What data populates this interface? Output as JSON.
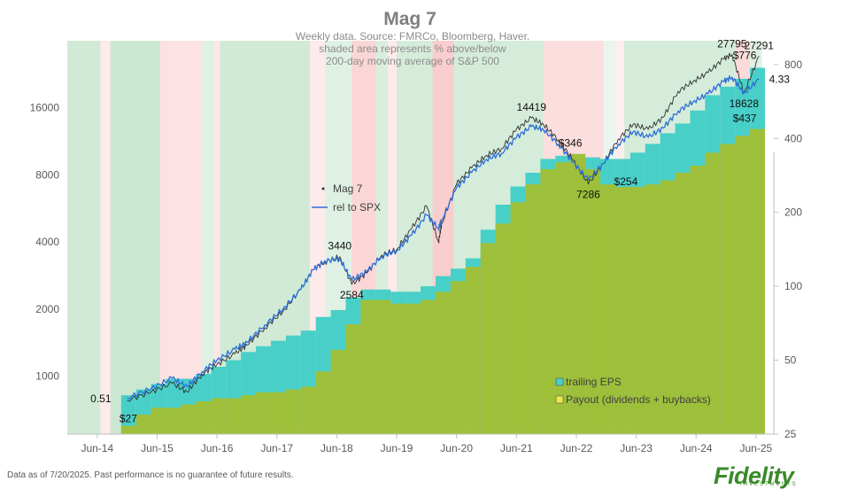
{
  "chart_data": {
    "type": "line",
    "title": "Mag 7",
    "subtitle": [
      "Weekly data.  Source: FMRCo, Bloomberg, Haver.",
      "shaded area represents % above/below",
      "200-day moving average of S&P 500"
    ],
    "x_ticks": [
      "Jun-14",
      "Jun-15",
      "Jun-16",
      "Jun-17",
      "Jun-18",
      "Jun-19",
      "Jun-20",
      "Jun-21",
      "Jun-22",
      "Jun-23",
      "Jun-24",
      "Jun-25"
    ],
    "left_axis": {
      "scale": "log",
      "ticks": [
        1000,
        2000,
        4000,
        8000,
        16000
      ],
      "ylim": [
        550,
        32000
      ]
    },
    "right_axis": {
      "scale": "log",
      "ticks": [
        25,
        50,
        100,
        200,
        400,
        800
      ],
      "ylim": [
        25,
        1000
      ]
    },
    "series": [
      {
        "name": "Mag 7",
        "axis": "left",
        "color": "#303030",
        "x": [
          2015.0,
          2015.4,
          2015.75,
          2016.0,
          2016.25,
          2016.5,
          2016.8,
          2017.0,
          2017.3,
          2017.6,
          2017.9,
          2018.1,
          2018.3,
          2018.55,
          2018.75,
          2019.0,
          2019.25,
          2019.5,
          2019.75,
          2020.0,
          2020.2,
          2020.25,
          2020.5,
          2020.75,
          2021.0,
          2021.25,
          2021.5,
          2021.75,
          2021.95,
          2022.2,
          2022.45,
          2022.7,
          2022.95,
          2023.2,
          2023.45,
          2023.7,
          2023.95,
          2024.2,
          2024.45,
          2024.7,
          2024.95,
          2025.1,
          2025.3,
          2025.55
        ],
        "values": [
          780,
          850,
          930,
          850,
          1020,
          1130,
          1260,
          1380,
          1650,
          1950,
          2450,
          3000,
          3250,
          3440,
          2584,
          2900,
          3500,
          3700,
          4600,
          5800,
          4000,
          4800,
          7300,
          8600,
          9800,
          10500,
          12800,
          14419,
          13500,
          11500,
          9300,
          7286,
          9000,
          11600,
          13500,
          12800,
          14500,
          19000,
          21000,
          23000,
          26500,
          27795,
          18628,
          27291
        ]
      },
      {
        "name": "rel to SPX",
        "axis": "left",
        "color": "#2e6fd6",
        "x": [
          2015.0,
          2015.4,
          2015.75,
          2016.0,
          2016.25,
          2016.5,
          2016.8,
          2017.0,
          2017.3,
          2017.6,
          2017.9,
          2018.1,
          2018.3,
          2018.55,
          2018.75,
          2019.0,
          2019.25,
          2019.5,
          2019.75,
          2020.0,
          2020.2,
          2020.25,
          2020.5,
          2020.75,
          2021.0,
          2021.25,
          2021.5,
          2021.75,
          2021.95,
          2022.2,
          2022.45,
          2022.7,
          2022.95,
          2023.2,
          2023.45,
          2023.7,
          2023.95,
          2024.2,
          2024.45,
          2024.7,
          2024.95,
          2025.1,
          2025.3,
          2025.55
        ],
        "values": [
          800,
          880,
          980,
          900,
          1050,
          1180,
          1320,
          1420,
          1700,
          2000,
          2450,
          3000,
          3300,
          3350,
          2700,
          2950,
          3450,
          3650,
          4300,
          5300,
          4600,
          5000,
          7000,
          8200,
          9400,
          10000,
          11800,
          13200,
          12800,
          11000,
          9100,
          7600,
          9000,
          11000,
          12500,
          11800,
          13000,
          15500,
          17000,
          18500,
          21000,
          22000,
          18628,
          21500
        ]
      },
      {
        "name": "trailing EPS",
        "axis": "right",
        "type": "bar",
        "color": "#48cfc8",
        "x": [
          2014.9,
          2015.15,
          2015.4,
          2015.65,
          2015.9,
          2016.15,
          2016.4,
          2016.65,
          2016.9,
          2017.15,
          2017.4,
          2017.65,
          2017.9,
          2018.15,
          2018.4,
          2018.65,
          2018.9,
          2019.15,
          2019.4,
          2019.65,
          2019.9,
          2020.15,
          2020.4,
          2020.65,
          2020.9,
          2021.15,
          2021.4,
          2021.65,
          2021.9,
          2022.15,
          2022.4,
          2022.65,
          2022.9,
          2023.15,
          2023.4,
          2023.65,
          2023.9,
          2024.15,
          2024.4,
          2024.65,
          2024.9,
          2025.15,
          2025.4
        ],
        "values": [
          36,
          38,
          40,
          42,
          42,
          44,
          47,
          50,
          54,
          57,
          60,
          63,
          66,
          75,
          80,
          90,
          97,
          97,
          95,
          95,
          100,
          110,
          118,
          130,
          170,
          215,
          255,
          290,
          330,
          340,
          345,
          335,
          330,
          330,
          350,
          380,
          420,
          460,
          520,
          600,
          650,
          700,
          776
        ]
      },
      {
        "name": "Payout (dividends + buybacks)",
        "axis": "right",
        "type": "bar",
        "color": "#9ebf3a",
        "x": [
          2014.9,
          2015.15,
          2015.4,
          2015.65,
          2015.9,
          2016.15,
          2016.4,
          2016.65,
          2016.9,
          2017.15,
          2017.4,
          2017.65,
          2017.9,
          2018.15,
          2018.4,
          2018.65,
          2018.9,
          2019.15,
          2019.4,
          2019.65,
          2019.9,
          2020.15,
          2020.4,
          2020.65,
          2020.9,
          2021.15,
          2021.4,
          2021.65,
          2021.9,
          2022.15,
          2022.4,
          2022.65,
          2022.9,
          2023.15,
          2023.4,
          2023.65,
          2023.9,
          2024.15,
          2024.4,
          2024.65,
          2024.9,
          2025.15,
          2025.4
        ],
        "values": [
          27,
          30,
          32,
          32,
          33,
          34,
          35,
          35,
          36,
          37,
          37,
          38,
          39,
          45,
          55,
          70,
          88,
          88,
          85,
          85,
          88,
          95,
          105,
          120,
          150,
          180,
          220,
          260,
          300,
          320,
          346,
          300,
          260,
          254,
          254,
          260,
          270,
          290,
          310,
          350,
          380,
          410,
          437
        ]
      }
    ],
    "regime_shading": {
      "description_colors": {
        "above": "#3fa85a",
        "below": "#f0686b"
      },
      "bands": [
        {
          "start": 2014.0,
          "end": 2014.55,
          "sign": 1,
          "strength": 0.45
        },
        {
          "start": 2014.55,
          "end": 2014.72,
          "sign": -1,
          "strength": 0.25
        },
        {
          "start": 2014.72,
          "end": 2015.55,
          "sign": 1,
          "strength": 0.5
        },
        {
          "start": 2015.55,
          "end": 2016.25,
          "sign": -1,
          "strength": 0.35
        },
        {
          "start": 2016.25,
          "end": 2016.45,
          "sign": 1,
          "strength": 0.3
        },
        {
          "start": 2016.45,
          "end": 2016.55,
          "sign": -1,
          "strength": 0.3
        },
        {
          "start": 2016.55,
          "end": 2018.05,
          "sign": 1,
          "strength": 0.45
        },
        {
          "start": 2018.05,
          "end": 2018.3,
          "sign": -1,
          "strength": 0.25
        },
        {
          "start": 2018.3,
          "end": 2018.75,
          "sign": 1,
          "strength": 0.3
        },
        {
          "start": 2018.75,
          "end": 2019.15,
          "sign": -1,
          "strength": 0.5
        },
        {
          "start": 2019.15,
          "end": 2019.35,
          "sign": 1,
          "strength": 0.35
        },
        {
          "start": 2019.35,
          "end": 2019.5,
          "sign": -1,
          "strength": 0.25
        },
        {
          "start": 2019.5,
          "end": 2020.1,
          "sign": 1,
          "strength": 0.4
        },
        {
          "start": 2020.1,
          "end": 2020.45,
          "sign": -1,
          "strength": 0.6
        },
        {
          "start": 2020.45,
          "end": 2021.95,
          "sign": 1,
          "strength": 0.4
        },
        {
          "start": 2021.95,
          "end": 2022.95,
          "sign": -1,
          "strength": 0.4
        },
        {
          "start": 2022.95,
          "end": 2023.15,
          "sign": 1,
          "strength": 0.2
        },
        {
          "start": 2023.15,
          "end": 2023.3,
          "sign": -1,
          "strength": 0.2
        },
        {
          "start": 2023.3,
          "end": 2025.15,
          "sign": 1,
          "strength": 0.4
        },
        {
          "start": 2025.15,
          "end": 2025.4,
          "sign": -1,
          "strength": 0.45
        },
        {
          "start": 2025.4,
          "end": 2025.6,
          "sign": 1,
          "strength": 0.3
        }
      ]
    },
    "annotations": [
      {
        "text": "0.51",
        "series": "rel to SPX",
        "color": "#2e6fd6",
        "x": 2014.88,
        "y": 800
      },
      {
        "text": "3440",
        "x": 2018.55,
        "y": 3440
      },
      {
        "text": "2584",
        "x": 2018.75,
        "y": 2584
      },
      {
        "text": "14419",
        "x": 2021.75,
        "y": 14419
      },
      {
        "text": "7286",
        "x": 2022.7,
        "y": 7286
      },
      {
        "text": "27795",
        "x": 2025.1,
        "y": 27795
      },
      {
        "text": "27291",
        "x": 2025.55,
        "y": 27291
      },
      {
        "text": "18628",
        "x": 2025.3,
        "y": 18628
      },
      {
        "text": "4.33",
        "color": "#2e6fd6",
        "x": 2025.6,
        "y": 21500
      },
      {
        "text": "$27",
        "axis": "right",
        "x": 2014.9,
        "y": 27
      },
      {
        "text": "$346",
        "axis": "right",
        "x": 2022.4,
        "y": 346
      },
      {
        "text": "$254",
        "axis": "right",
        "x": 2023.15,
        "y": 254
      },
      {
        "text": "$776",
        "axis": "right",
        "x": 2025.4,
        "y": 776
      },
      {
        "text": "$437",
        "axis": "right",
        "x": 2025.4,
        "y": 437
      }
    ],
    "legend": {
      "placement": "upper-left and lower-right",
      "lines": [
        "Mag 7",
        "rel to SPX"
      ],
      "bars": [
        "trailing EPS",
        "Payout (dividends + buybacks)"
      ]
    },
    "grid": false
  },
  "footer": "Data as of 7/20/2025. Past performance is no guarantee of future results.",
  "logo": {
    "name": "Fidelity",
    "tagline": "INVESTMENTS"
  }
}
